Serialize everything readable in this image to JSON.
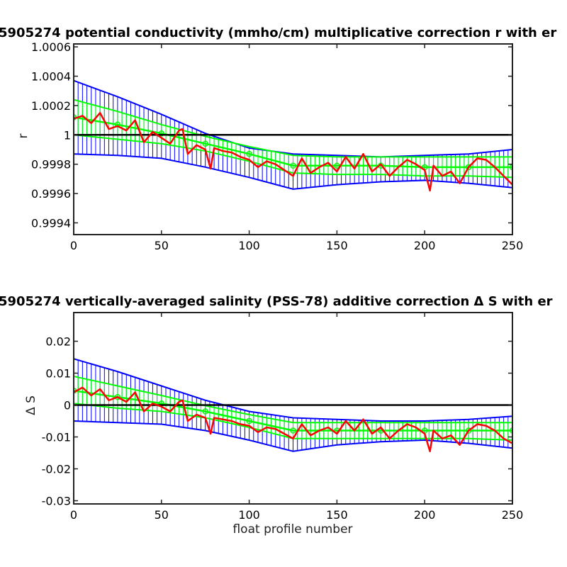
{
  "chart_data": [
    {
      "type": "line",
      "title": "5905274 potential conductivity (mmho/cm) multiplicative correction r with er",
      "xlabel": "",
      "ylabel": "r",
      "xlim": [
        0,
        250
      ],
      "ylim": [
        0.99932,
        1.00062
      ],
      "x_ticks": [
        "0",
        "50",
        "100",
        "150",
        "200",
        "250"
      ],
      "y_ticks": [
        "0.9994",
        "0.9996",
        "0.9998",
        "1",
        "1.0002",
        "1.0004",
        "1.0006"
      ],
      "reference_line": 1,
      "series": [
        {
          "color": "#ff0000",
          "x": [
            0,
            5,
            10,
            15,
            20,
            25,
            30,
            35,
            40,
            45,
            50,
            55,
            60,
            62,
            65,
            70,
            75,
            78,
            80,
            85,
            90,
            95,
            100,
            105,
            110,
            115,
            120,
            125,
            130,
            135,
            140,
            145,
            150,
            155,
            160,
            165,
            170,
            175,
            180,
            185,
            190,
            195,
            200,
            203,
            205,
            210,
            215,
            220,
            225,
            230,
            235,
            240,
            245,
            250
          ],
          "y": [
            1.00011,
            1.00013,
            1.00008,
            1.00015,
            1.00004,
            1.00006,
            1.00003,
            1.0001,
            0.99995,
            1.00002,
            0.99998,
            0.99994,
            1.00003,
            1.00004,
            0.99987,
            0.99993,
            0.9999,
            0.99977,
            0.99991,
            0.99989,
            0.99988,
            0.99985,
            0.99983,
            0.99978,
            0.99982,
            0.9998,
            0.99976,
            0.99972,
            0.99984,
            0.99974,
            0.99978,
            0.99981,
            0.99975,
            0.99985,
            0.99977,
            0.99987,
            0.99975,
            0.9998,
            0.99972,
            0.99978,
            0.99983,
            0.9998,
            0.99976,
            0.99962,
            0.99979,
            0.99972,
            0.99975,
            0.99967,
            0.99978,
            0.99984,
            0.99983,
            0.99978,
            0.99972,
            0.99966
          ]
        },
        {
          "color": "#00ff00",
          "x": [
            0,
            25,
            50,
            75,
            100,
            125,
            150,
            175,
            200,
            225,
            250
          ],
          "y": [
            1.00012,
            1.00007,
            1.00001,
            0.99994,
            0.99987,
            0.99979,
            0.99979,
            0.99979,
            0.99978,
            0.99978,
            0.99978
          ]
        },
        {
          "color": "#00ff00",
          "x": [
            0,
            25,
            50,
            75,
            100,
            125,
            150,
            175,
            200,
            225,
            250
          ],
          "y": [
            1.00024,
            1.00016,
            1.00007,
            0.99999,
            0.99992,
            0.99986,
            0.99985,
            0.99985,
            0.99985,
            0.99985,
            0.99985
          ]
        },
        {
          "color": "#00ff00",
          "x": [
            0,
            25,
            50,
            75,
            100,
            125,
            150,
            175,
            200,
            225,
            250
          ],
          "y": [
            1.0,
            0.99997,
            0.99994,
            0.99989,
            0.99982,
            0.99974,
            0.99973,
            0.99973,
            0.99972,
            0.99972,
            0.99971
          ]
        },
        {
          "color": "#0000ff",
          "x": [
            0,
            25,
            50,
            75,
            100,
            125,
            150,
            175,
            200,
            225,
            250
          ],
          "y": [
            1.00037,
            1.00026,
            1.00014,
            1.00001,
            0.99991,
            0.99987,
            0.99986,
            0.99985,
            0.99986,
            0.99987,
            0.9999
          ]
        },
        {
          "color": "#0000ff",
          "x": [
            0,
            25,
            50,
            75,
            100,
            125,
            150,
            175,
            200,
            225,
            250
          ],
          "y": [
            0.99987,
            0.99986,
            0.99984,
            0.99978,
            0.99971,
            0.99963,
            0.99966,
            0.99968,
            0.99969,
            0.99967,
            0.99964
          ]
        }
      ]
    },
    {
      "type": "line",
      "title": "5905274 vertically-averaged salinity (PSS-78) additive correction Δ S with er",
      "xlabel": "float profile number",
      "ylabel": "Δ S",
      "xlim": [
        0,
        250
      ],
      "ylim": [
        -0.031,
        0.029
      ],
      "x_ticks": [
        "0",
        "50",
        "100",
        "150",
        "200",
        "250"
      ],
      "y_ticks": [
        "-0.03",
        "-0.02",
        "-0.01",
        "0",
        "0.01",
        "0.02"
      ],
      "reference_line": 0,
      "series": [
        {
          "color": "#ff0000",
          "x": [
            0,
            5,
            10,
            15,
            20,
            25,
            30,
            35,
            40,
            45,
            50,
            55,
            60,
            62,
            65,
            70,
            75,
            78,
            80,
            85,
            90,
            95,
            100,
            105,
            110,
            115,
            120,
            125,
            130,
            135,
            140,
            145,
            150,
            155,
            160,
            165,
            170,
            175,
            180,
            185,
            190,
            195,
            200,
            203,
            205,
            210,
            215,
            220,
            225,
            230,
            235,
            240,
            245,
            250
          ],
          "y": [
            0.004,
            0.0055,
            0.003,
            0.005,
            0.0015,
            0.0025,
            0.001,
            0.004,
            -0.002,
            0.0005,
            -0.0005,
            -0.002,
            0.001,
            0.0015,
            -0.005,
            -0.003,
            -0.004,
            -0.009,
            -0.004,
            -0.0045,
            -0.005,
            -0.006,
            -0.0065,
            -0.0085,
            -0.007,
            -0.0075,
            -0.009,
            -0.0105,
            -0.006,
            -0.0095,
            -0.008,
            -0.007,
            -0.009,
            -0.005,
            -0.008,
            -0.0045,
            -0.009,
            -0.007,
            -0.0105,
            -0.008,
            -0.006,
            -0.007,
            -0.009,
            -0.0145,
            -0.008,
            -0.0105,
            -0.0095,
            -0.0125,
            -0.008,
            -0.006,
            -0.0065,
            -0.008,
            -0.0105,
            -0.012
          ]
        },
        {
          "color": "#00ff00",
          "x": [
            0,
            25,
            50,
            75,
            100,
            125,
            150,
            175,
            200,
            225,
            250
          ],
          "y": [
            0.0045,
            0.0025,
            0.0005,
            -0.002,
            -0.005,
            -0.008,
            -0.008,
            -0.008,
            -0.008,
            -0.008,
            -0.008
          ]
        },
        {
          "color": "#00ff00",
          "x": [
            0,
            25,
            50,
            75,
            100,
            125,
            150,
            175,
            200,
            225,
            250
          ],
          "y": [
            0.009,
            0.006,
            0.003,
            -0.0002,
            -0.003,
            -0.0055,
            -0.0055,
            -0.0055,
            -0.0055,
            -0.0055,
            -0.0055
          ]
        },
        {
          "color": "#00ff00",
          "x": [
            0,
            25,
            50,
            75,
            100,
            125,
            150,
            175,
            200,
            225,
            250
          ],
          "y": [
            0.0005,
            -0.001,
            -0.002,
            -0.004,
            -0.007,
            -0.0105,
            -0.0105,
            -0.0105,
            -0.0105,
            -0.0105,
            -0.011
          ]
        },
        {
          "color": "#0000ff",
          "x": [
            0,
            25,
            50,
            75,
            100,
            125,
            150,
            175,
            200,
            225,
            250
          ],
          "y": [
            0.0145,
            0.0105,
            0.006,
            0.0015,
            -0.002,
            -0.004,
            -0.0045,
            -0.005,
            -0.005,
            -0.0045,
            -0.0035
          ]
        },
        {
          "color": "#0000ff",
          "x": [
            0,
            25,
            50,
            75,
            100,
            125,
            150,
            175,
            200,
            225,
            250
          ],
          "y": [
            -0.005,
            -0.0055,
            -0.006,
            -0.008,
            -0.011,
            -0.0145,
            -0.0125,
            -0.0115,
            -0.011,
            -0.012,
            -0.0135
          ]
        }
      ]
    }
  ]
}
